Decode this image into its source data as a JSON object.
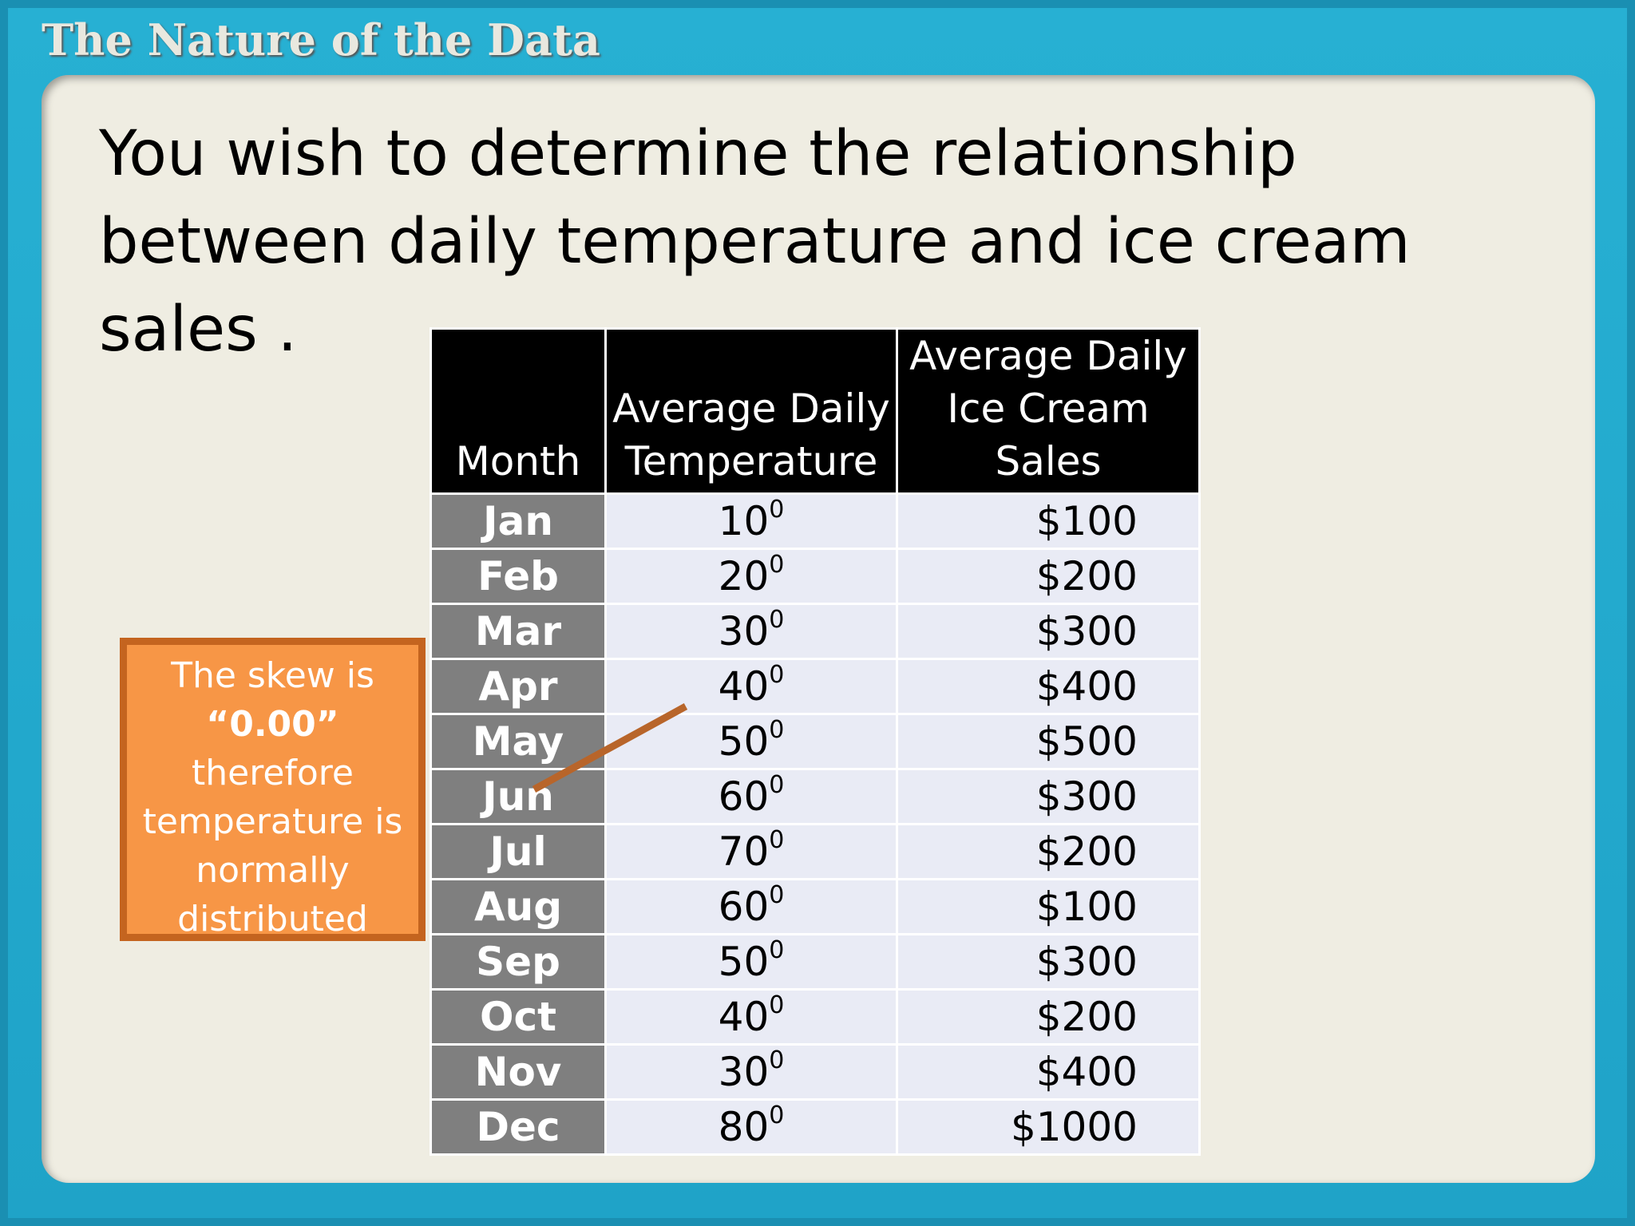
{
  "header": {
    "title": "The Nature of the Data"
  },
  "question": "You wish to determine the relationship between daily temperature and ice cream sales .",
  "table": {
    "columns": [
      "Month",
      "Average Daily Temperature",
      "Average Daily Ice Cream Sales"
    ],
    "rows": [
      {
        "month": "Jan",
        "temperature": "10",
        "degree": "0",
        "sales": "$100"
      },
      {
        "month": "Feb",
        "temperature": "20",
        "degree": "0",
        "sales": "$200"
      },
      {
        "month": "Mar",
        "temperature": "30",
        "degree": "0",
        "sales": "$300"
      },
      {
        "month": "Apr",
        "temperature": "40",
        "degree": "0",
        "sales": "$400"
      },
      {
        "month": "May",
        "temperature": "50",
        "degree": "0",
        "sales": "$500"
      },
      {
        "month": "Jun",
        "temperature": "60",
        "degree": "0",
        "sales": "$300"
      },
      {
        "month": "Jul",
        "temperature": "70",
        "degree": "0",
        "sales": "$200"
      },
      {
        "month": "Aug",
        "temperature": "60",
        "degree": "0",
        "sales": "$100"
      },
      {
        "month": "Sep",
        "temperature": "50",
        "degree": "0",
        "sales": "$300"
      },
      {
        "month": "Oct",
        "temperature": "40",
        "degree": "0",
        "sales": "$200"
      },
      {
        "month": "Nov",
        "temperature": "30",
        "degree": "0",
        "sales": "$400"
      },
      {
        "month": "Dec",
        "temperature": "80",
        "degree": "0",
        "sales": "$1000"
      }
    ]
  },
  "callout": {
    "line1": "The skew is",
    "value": "“0.00”",
    "line2": "therefore temperature is normally distributed"
  }
}
